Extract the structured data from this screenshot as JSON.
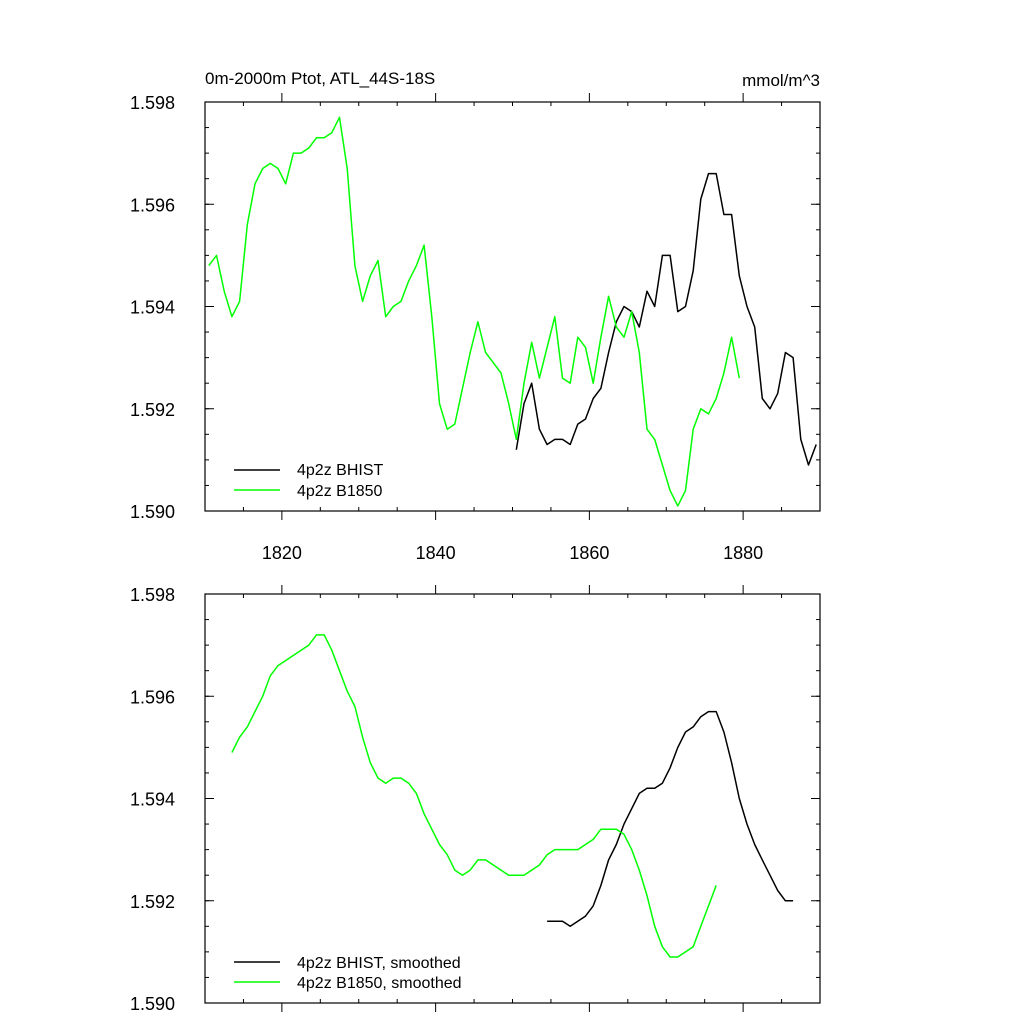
{
  "colors": {
    "bhist": "#000000",
    "b1850": "#00ff00"
  },
  "chart_data": [
    {
      "type": "line",
      "title": "0m-2000m Ptot, ATL_44S-18S",
      "units": "mmol/m^3",
      "xlabel": "",
      "ylabel": "",
      "xlim": [
        1810,
        1890
      ],
      "ylim": [
        1.59,
        1.598
      ],
      "x_ticks": [
        1820,
        1840,
        1860,
        1880
      ],
      "y_ticks": [
        1.59,
        1.592,
        1.594,
        1.596,
        1.598
      ],
      "x_tick_labels": [
        "1820",
        "1840",
        "1860",
        "1880"
      ],
      "y_tick_labels": [
        "1.590",
        "1.592",
        "1.594",
        "1.596",
        "1.598"
      ],
      "legend_position": "bottom-left",
      "series": [
        {
          "name": "4p2z BHIST",
          "color": "#000000",
          "x": [
            1850.5,
            1851.5,
            1852.5,
            1853.5,
            1854.5,
            1855.5,
            1856.5,
            1857.5,
            1858.5,
            1859.5,
            1860.5,
            1861.5,
            1862.5,
            1863.5,
            1864.5,
            1865.5,
            1866.5,
            1867.5,
            1868.5,
            1869.5,
            1870.5,
            1871.5,
            1872.5,
            1873.5,
            1874.5,
            1875.5,
            1876.5,
            1877.5,
            1878.5,
            1879.5,
            1880.5,
            1881.5,
            1882.5,
            1883.5,
            1884.5,
            1885.5,
            1886.5,
            1887.5,
            1888.5,
            1889.5
          ],
          "y": [
            1.5912,
            1.5921,
            1.5925,
            1.5916,
            1.5913,
            1.5914,
            1.5914,
            1.5913,
            1.5917,
            1.5918,
            1.5922,
            1.5924,
            1.5931,
            1.5937,
            1.594,
            1.5939,
            1.5936,
            1.5943,
            1.594,
            1.595,
            1.595,
            1.5939,
            1.594,
            1.5947,
            1.5961,
            1.5966,
            1.5966,
            1.5958,
            1.5958,
            1.5946,
            1.594,
            1.5936,
            1.5922,
            1.592,
            1.5923,
            1.5931,
            1.593,
            1.5914,
            1.5909,
            1.5913
          ]
        },
        {
          "name": "4p2z B1850",
          "color": "#00ff00",
          "x": [
            1810.5,
            1811.5,
            1812.5,
            1813.5,
            1814.5,
            1815.5,
            1816.5,
            1817.5,
            1818.5,
            1819.5,
            1820.5,
            1821.5,
            1822.5,
            1823.5,
            1824.5,
            1825.5,
            1826.5,
            1827.5,
            1828.5,
            1829.5,
            1830.5,
            1831.5,
            1832.5,
            1833.5,
            1834.5,
            1835.5,
            1836.5,
            1837.5,
            1838.5,
            1839.5,
            1840.5,
            1841.5,
            1842.5,
            1843.5,
            1844.5,
            1845.5,
            1846.5,
            1847.5,
            1848.5,
            1849.5,
            1850.5,
            1851.5,
            1852.5,
            1853.5,
            1854.5,
            1855.5,
            1856.5,
            1857.5,
            1858.5,
            1859.5,
            1860.5,
            1861.5,
            1862.5,
            1863.5,
            1864.5,
            1865.5,
            1866.5,
            1867.5,
            1868.5,
            1869.5,
            1870.5,
            1871.5,
            1872.5,
            1873.5,
            1874.5,
            1875.5,
            1876.5,
            1877.5,
            1878.5,
            1879.5
          ],
          "y": [
            1.5948,
            1.595,
            1.5943,
            1.5938,
            1.5941,
            1.5956,
            1.5964,
            1.5967,
            1.5968,
            1.5967,
            1.5964,
            1.597,
            1.597,
            1.5971,
            1.5973,
            1.5973,
            1.5974,
            1.5977,
            1.5967,
            1.5948,
            1.5941,
            1.5946,
            1.5949,
            1.5938,
            1.594,
            1.5941,
            1.5945,
            1.5948,
            1.5952,
            1.5938,
            1.5921,
            1.5916,
            1.5917,
            1.5924,
            1.5931,
            1.5937,
            1.5931,
            1.5929,
            1.5927,
            1.5921,
            1.5914,
            1.5925,
            1.5933,
            1.5926,
            1.5932,
            1.5938,
            1.5926,
            1.5925,
            1.5934,
            1.5932,
            1.5925,
            1.5934,
            1.5942,
            1.5936,
            1.5934,
            1.5939,
            1.5931,
            1.5916,
            1.5914,
            1.5909,
            1.5904,
            1.5901,
            1.5904,
            1.5916,
            1.592,
            1.5919,
            1.5922,
            1.5927,
            1.5934,
            1.5926
          ]
        }
      ]
    },
    {
      "type": "line",
      "title": "",
      "units": "",
      "xlabel": "",
      "ylabel": "",
      "xlim": [
        1810,
        1890
      ],
      "ylim": [
        1.59,
        1.598
      ],
      "x_ticks": [
        1820,
        1840,
        1860,
        1880
      ],
      "y_ticks": [
        1.59,
        1.592,
        1.594,
        1.596,
        1.598
      ],
      "x_tick_labels": [],
      "y_tick_labels": [
        "1.590",
        "1.592",
        "1.594",
        "1.596",
        "1.598"
      ],
      "legend_position": "bottom-left",
      "series": [
        {
          "name": "4p2z BHIST, smoothed",
          "color": "#000000",
          "x": [
            1854.5,
            1855.5,
            1856.5,
            1857.5,
            1858.5,
            1859.5,
            1860.5,
            1861.5,
            1862.5,
            1863.5,
            1864.5,
            1865.5,
            1866.5,
            1867.5,
            1868.5,
            1869.5,
            1870.5,
            1871.5,
            1872.5,
            1873.5,
            1874.5,
            1875.5,
            1876.5,
            1877.5,
            1878.5,
            1879.5,
            1880.5,
            1881.5,
            1882.5,
            1883.5,
            1884.5,
            1885.5,
            1886.5
          ],
          "y": [
            1.5916,
            1.5916,
            1.5916,
            1.5915,
            1.5916,
            1.5917,
            1.5919,
            1.5923,
            1.5928,
            1.5931,
            1.5935,
            1.5938,
            1.5941,
            1.5942,
            1.5942,
            1.5943,
            1.5946,
            1.595,
            1.5953,
            1.5954,
            1.5956,
            1.5957,
            1.5957,
            1.5953,
            1.5947,
            1.594,
            1.5935,
            1.5931,
            1.5928,
            1.5925,
            1.5922,
            1.592,
            1.592
          ]
        },
        {
          "name": "4p2z B1850, smoothed",
          "color": "#00ff00",
          "x": [
            1813.5,
            1814.5,
            1815.5,
            1816.5,
            1817.5,
            1818.5,
            1819.5,
            1820.5,
            1821.5,
            1822.5,
            1823.5,
            1824.5,
            1825.5,
            1826.5,
            1827.5,
            1828.5,
            1829.5,
            1830.5,
            1831.5,
            1832.5,
            1833.5,
            1834.5,
            1835.5,
            1836.5,
            1837.5,
            1838.5,
            1839.5,
            1840.5,
            1841.5,
            1842.5,
            1843.5,
            1844.5,
            1845.5,
            1846.5,
            1847.5,
            1848.5,
            1849.5,
            1850.5,
            1851.5,
            1852.5,
            1853.5,
            1854.5,
            1855.5,
            1856.5,
            1857.5,
            1858.5,
            1859.5,
            1860.5,
            1861.5,
            1862.5,
            1863.5,
            1864.5,
            1865.5,
            1866.5,
            1867.5,
            1868.5,
            1869.5,
            1870.5,
            1871.5,
            1872.5,
            1873.5,
            1874.5,
            1875.5,
            1876.5
          ],
          "y": [
            1.5949,
            1.5952,
            1.5954,
            1.5957,
            1.596,
            1.5964,
            1.5966,
            1.5967,
            1.5968,
            1.5969,
            1.597,
            1.5972,
            1.5972,
            1.5969,
            1.5965,
            1.5961,
            1.5958,
            1.5952,
            1.5947,
            1.5944,
            1.5943,
            1.5944,
            1.5944,
            1.5943,
            1.5941,
            1.5937,
            1.5934,
            1.5931,
            1.5929,
            1.5926,
            1.5925,
            1.5926,
            1.5928,
            1.5928,
            1.5927,
            1.5926,
            1.5925,
            1.5925,
            1.5925,
            1.5926,
            1.5927,
            1.5929,
            1.593,
            1.593,
            1.593,
            1.593,
            1.5931,
            1.5932,
            1.5934,
            1.5934,
            1.5934,
            1.5933,
            1.593,
            1.5926,
            1.5921,
            1.5915,
            1.5911,
            1.5909,
            1.5909,
            1.591,
            1.5911,
            1.5915,
            1.5919,
            1.5923
          ]
        }
      ]
    }
  ]
}
